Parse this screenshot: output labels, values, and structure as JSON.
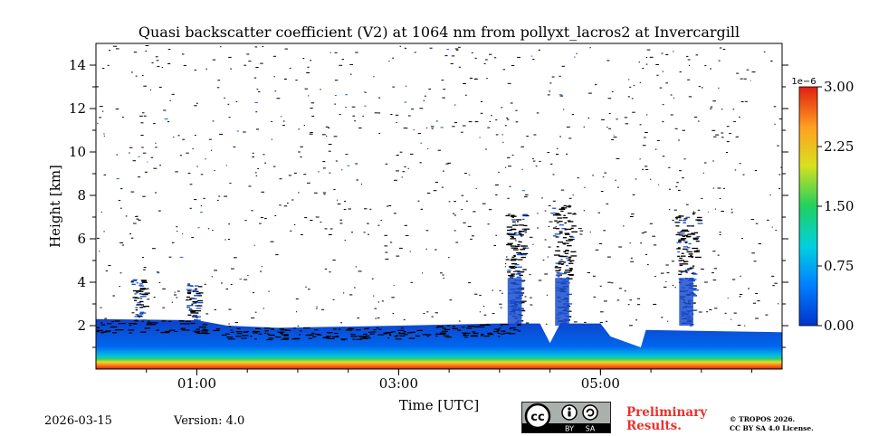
{
  "chart_data": {
    "type": "heatmap",
    "title": "Quasi backscatter coefficient (V2) at 1064 nm from pollyxt_lacros2 at Invercargill",
    "xlabel": "Time [UTC]",
    "ylabel": "Height [km]",
    "xlim": [
      0.0,
      6.8
    ],
    "ylim": [
      0,
      15
    ],
    "x_ticks": [
      1,
      3,
      5
    ],
    "x_tick_labels": [
      "01:00",
      "03:00",
      "05:00"
    ],
    "y_ticks": [
      2,
      4,
      6,
      8,
      10,
      12,
      14
    ],
    "y_tick_labels": [
      "2",
      "4",
      "6",
      "8",
      "10",
      "12",
      "14"
    ],
    "colorbar": {
      "min": 0.0,
      "max": 3.0,
      "scale_label": "1e−6",
      "ticks": [
        0.0,
        0.75,
        1.5,
        2.25,
        3.0
      ],
      "tick_labels": [
        "0.00",
        "0.75",
        "1.50",
        "2.25",
        "3.00"
      ],
      "colormap": [
        "#0033cc",
        "#0080ff",
        "#00d0e0",
        "#20d060",
        "#d8e020",
        "#ffa020",
        "#e02010"
      ]
    },
    "boundary_layer_top_km": [
      [
        0.0,
        2.3
      ],
      [
        1.0,
        2.25
      ],
      [
        1.3,
        2.0
      ],
      [
        1.8,
        1.9
      ],
      [
        3.0,
        2.0
      ],
      [
        4.0,
        2.1
      ],
      [
        4.4,
        2.1
      ],
      [
        4.5,
        1.2
      ],
      [
        4.6,
        2.1
      ],
      [
        5.0,
        2.1
      ],
      [
        5.1,
        1.5
      ],
      [
        5.4,
        1.0
      ],
      [
        5.45,
        1.8
      ],
      [
        6.8,
        1.7
      ]
    ],
    "aerosol_plumes": [
      {
        "t": 0.42,
        "top_km": 4.2
      },
      {
        "t": 0.95,
        "top_km": 3.9
      },
      {
        "t": 4.15,
        "top_km": 7.2
      },
      {
        "t": 4.62,
        "top_km": 7.6
      },
      {
        "t": 5.85,
        "top_km": 7.2
      }
    ]
  },
  "footer": {
    "date": "2026-03-15",
    "version": "Version: 4.0",
    "preliminary_line1": "Preliminary",
    "preliminary_line2": "Results.",
    "license_line1": "© TROPOS 2026.",
    "license_line2": "CC BY SA 4.0 License.",
    "cc_labels": [
      "BY",
      "SA"
    ]
  }
}
